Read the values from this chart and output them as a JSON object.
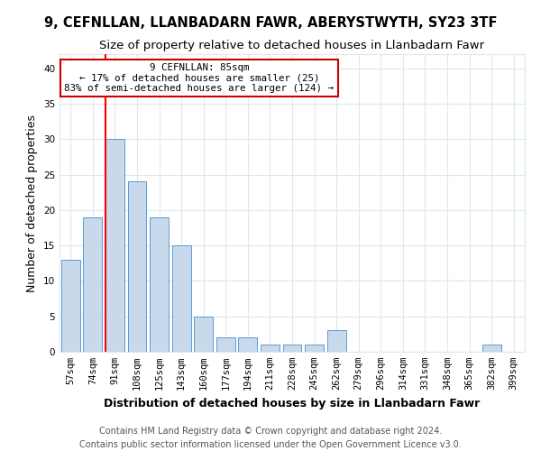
{
  "title1": "9, CEFNLLAN, LLANBADARN FAWR, ABERYSTWYTH, SY23 3TF",
  "title2": "Size of property relative to detached houses in Llanbadarn Fawr",
  "xlabel": "Distribution of detached houses by size in Llanbadarn Fawr",
  "ylabel": "Number of detached properties",
  "categories": [
    "57sqm",
    "74sqm",
    "91sqm",
    "108sqm",
    "125sqm",
    "143sqm",
    "160sqm",
    "177sqm",
    "194sqm",
    "211sqm",
    "228sqm",
    "245sqm",
    "262sqm",
    "279sqm",
    "296sqm",
    "314sqm",
    "331sqm",
    "348sqm",
    "365sqm",
    "382sqm",
    "399sqm"
  ],
  "values": [
    13,
    19,
    30,
    24,
    19,
    15,
    5,
    2,
    2,
    1,
    1,
    1,
    3,
    0,
    0,
    0,
    0,
    0,
    0,
    1,
    0
  ],
  "bar_color": "#c9d9ec",
  "bar_edge_color": "#5b9bd5",
  "red_line_index": 2,
  "annotation_title": "9 CEFNLLAN: 85sqm",
  "annotation_line1": "← 17% of detached houses are smaller (25)",
  "annotation_line2": "83% of semi-detached houses are larger (124) →",
  "annotation_box_color": "#ffffff",
  "annotation_box_edge": "#cc0000",
  "footnote1": "Contains HM Land Registry data © Crown copyright and database right 2024.",
  "footnote2": "Contains public sector information licensed under the Open Government Licence v3.0.",
  "ylim": [
    0,
    42
  ],
  "yticks": [
    0,
    5,
    10,
    15,
    20,
    25,
    30,
    35,
    40
  ],
  "grid_color": "#dce8f0",
  "title_fontsize": 10.5,
  "subtitle_fontsize": 9.5,
  "axis_label_fontsize": 9,
  "tick_fontsize": 7.5,
  "footnote_fontsize": 7
}
